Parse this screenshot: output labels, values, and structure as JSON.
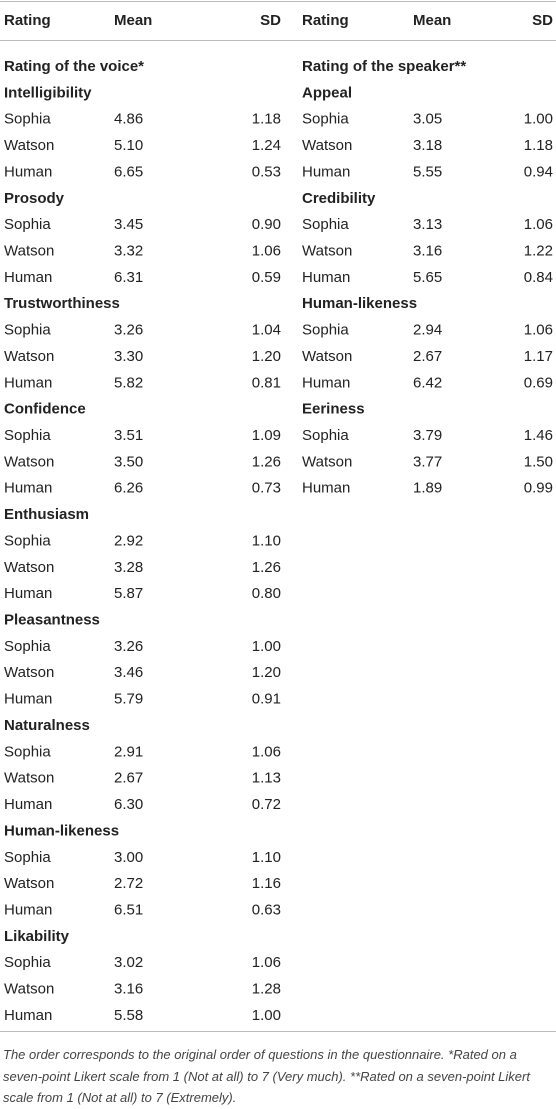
{
  "header": [
    "Rating",
    "Mean",
    "SD",
    "Rating",
    "Mean",
    "SD"
  ],
  "left": {
    "title": "Rating of the voice*",
    "groups": [
      {
        "name": "Intelligibility",
        "rows": [
          [
            "Sophia",
            "4.86",
            "1.18"
          ],
          [
            "Watson",
            "5.10",
            "1.24"
          ],
          [
            "Human",
            "6.65",
            "0.53"
          ]
        ]
      },
      {
        "name": "Prosody",
        "rows": [
          [
            "Sophia",
            "3.45",
            "0.90"
          ],
          [
            "Watson",
            "3.32",
            "1.06"
          ],
          [
            "Human",
            "6.31",
            "0.59"
          ]
        ]
      },
      {
        "name": "Trustworthiness",
        "rows": [
          [
            "Sophia",
            "3.26",
            "1.04"
          ],
          [
            "Watson",
            "3.30",
            "1.20"
          ],
          [
            "Human",
            "5.82",
            "0.81"
          ]
        ]
      },
      {
        "name": "Confidence",
        "rows": [
          [
            "Sophia",
            "3.51",
            "1.09"
          ],
          [
            "Watson",
            "3.50",
            "1.26"
          ],
          [
            "Human",
            "6.26",
            "0.73"
          ]
        ]
      },
      {
        "name": "Enthusiasm",
        "rows": [
          [
            "Sophia",
            "2.92",
            "1.10"
          ],
          [
            "Watson",
            "3.28",
            "1.26"
          ],
          [
            "Human",
            "5.87",
            "0.80"
          ]
        ]
      },
      {
        "name": "Pleasantness",
        "rows": [
          [
            "Sophia",
            "3.26",
            "1.00"
          ],
          [
            "Watson",
            "3.46",
            "1.20"
          ],
          [
            "Human",
            "5.79",
            "0.91"
          ]
        ]
      },
      {
        "name": "Naturalness",
        "rows": [
          [
            "Sophia",
            "2.91",
            "1.06"
          ],
          [
            "Watson",
            "2.67",
            "1.13"
          ],
          [
            "Human",
            "6.30",
            "0.72"
          ]
        ]
      },
      {
        "name": "Human-likeness",
        "rows": [
          [
            "Sophia",
            "3.00",
            "1.10"
          ],
          [
            "Watson",
            "2.72",
            "1.16"
          ],
          [
            "Human",
            "6.51",
            "0.63"
          ]
        ]
      },
      {
        "name": "Likability",
        "rows": [
          [
            "Sophia",
            "3.02",
            "1.06"
          ],
          [
            "Watson",
            "3.16",
            "1.28"
          ],
          [
            "Human",
            "5.58",
            "1.00"
          ]
        ]
      }
    ]
  },
  "right": {
    "title": "Rating of the speaker**",
    "groups": [
      {
        "name": "Appeal",
        "rows": [
          [
            "Sophia",
            "3.05",
            "1.00"
          ],
          [
            "Watson",
            "3.18",
            "1.18"
          ],
          [
            "Human",
            "5.55",
            "0.94"
          ]
        ]
      },
      {
        "name": "Credibility",
        "rows": [
          [
            "Sophia",
            "3.13",
            "1.06"
          ],
          [
            "Watson",
            "3.16",
            "1.22"
          ],
          [
            "Human",
            "5.65",
            "0.84"
          ]
        ]
      },
      {
        "name": "Human-likeness",
        "rows": [
          [
            "Sophia",
            "2.94",
            "1.06"
          ],
          [
            "Watson",
            "2.67",
            "1.17"
          ],
          [
            "Human",
            "6.42",
            "0.69"
          ]
        ]
      },
      {
        "name": "Eeriness",
        "rows": [
          [
            "Sophia",
            "3.79",
            "1.46"
          ],
          [
            "Watson",
            "3.77",
            "1.50"
          ],
          [
            "Human",
            "1.89",
            "0.99"
          ]
        ]
      }
    ]
  },
  "footnote": "The order corresponds to the original order of questions in the questionnaire. *Rated on a seven-point Likert scale from 1 (Not at all) to 7 (Very much). **Rated on a seven-point Likert scale from 1 (Not at all) to 7 (Extremely)."
}
